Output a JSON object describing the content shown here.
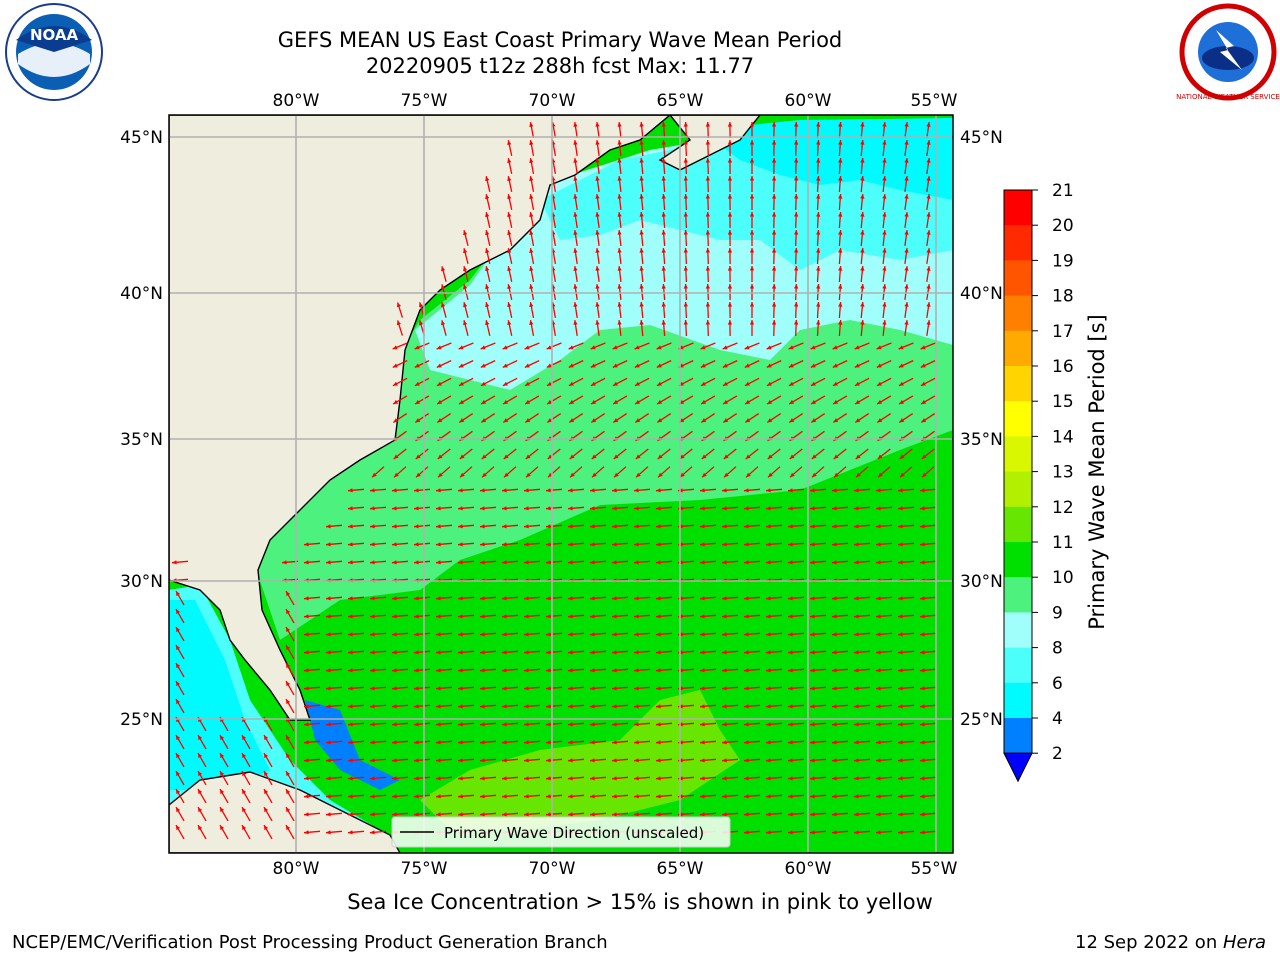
{
  "title": {
    "line1": "GEFS MEAN US East Coast Primary Wave Mean Period",
    "line2": "20220905 t12z 288h fcst   Max: 11.77"
  },
  "map": {
    "lon_ticks": [
      "80°W",
      "75°W",
      "70°W",
      "65°W",
      "60°W",
      "55°W"
    ],
    "lat_ticks": [
      "45°N",
      "40°N",
      "35°N",
      "30°N",
      "25°N"
    ],
    "legend_label": "Primary Wave Direction (unscaled)",
    "colors": {
      "land": "#efedde",
      "arrow": "#ff0000",
      "grid": "#b0b0b0"
    }
  },
  "colorbar": {
    "label": "Primary Wave Mean Period [s]",
    "ticks": [
      "21",
      "20",
      "19",
      "18",
      "17",
      "16",
      "15",
      "14",
      "13",
      "12",
      "11",
      "10",
      "9",
      "8",
      "6",
      "4",
      "2"
    ],
    "colors": [
      "#ff0000",
      "#ff2a00",
      "#ff5500",
      "#ff7f00",
      "#ffaa00",
      "#ffd400",
      "#ffff00",
      "#d9f700",
      "#b3ef00",
      "#66e600",
      "#00e000",
      "#4cf27d",
      "#a0fffb",
      "#4dfffb",
      "#00fbff",
      "#0080ff",
      "#0000ff"
    ]
  },
  "caption": "Sea Ice Concentration > 15% is shown in pink to yellow",
  "footer": {
    "left": "NCEP/EMC/Verification Post Processing Product Generation Branch",
    "date": "12 Sep 2022 on ",
    "machine": "Hera"
  },
  "logos": {
    "left": "NOAA",
    "right_text": "NATIONAL WEATHER SERVICE"
  }
}
